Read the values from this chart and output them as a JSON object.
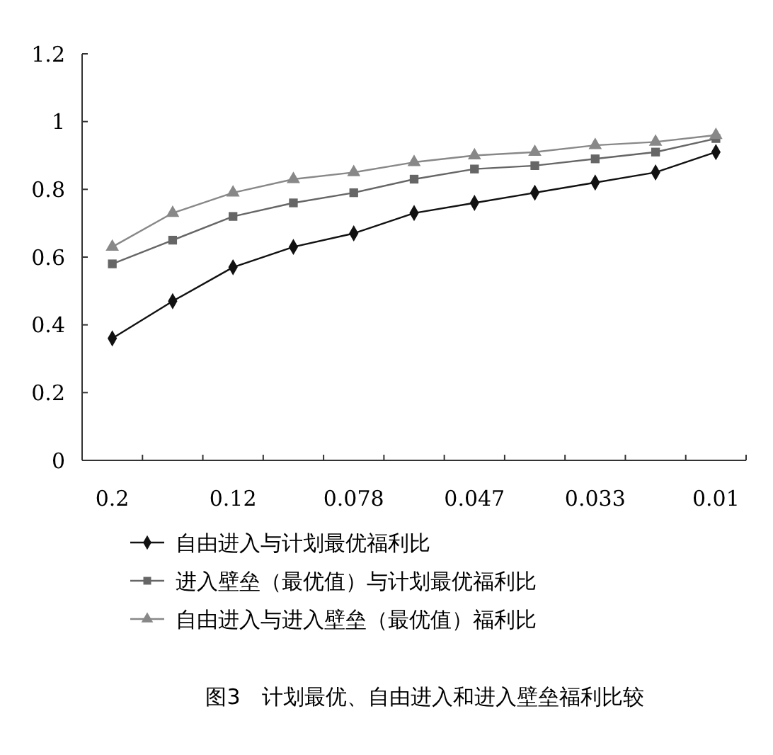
{
  "chart_data": {
    "type": "line",
    "title": "图3　计划最优、自由进入和进入壁垒福利比较",
    "categories": [
      "0.2",
      null,
      "0.12",
      null,
      "0.078",
      null,
      "0.047",
      null,
      "0.033",
      null,
      "0.01"
    ],
    "series": [
      {
        "name": "自由进入与计划最优福利比",
        "color": "#111111",
        "marker": "diamond",
        "values": [
          0.36,
          0.47,
          0.57,
          0.63,
          0.67,
          0.73,
          0.76,
          0.79,
          0.82,
          0.85,
          0.91
        ]
      },
      {
        "name": "进入壁垒（最优值）与计划最优福利比",
        "color": "#666666",
        "marker": "square",
        "values": [
          0.58,
          0.65,
          0.72,
          0.76,
          0.79,
          0.83,
          0.86,
          0.87,
          0.89,
          0.91,
          0.95
        ]
      },
      {
        "name": "自由进入与进入壁垒（最优值）福利比",
        "color": "#888888",
        "marker": "triangle",
        "values": [
          0.63,
          0.73,
          0.79,
          0.83,
          0.85,
          0.88,
          0.9,
          0.91,
          0.93,
          0.94,
          0.96
        ]
      }
    ],
    "ylim": [
      0,
      1.2
    ],
    "yticks": [
      0,
      0.2,
      0.4,
      0.6,
      0.8,
      1,
      1.2
    ],
    "grid": false,
    "legend": "bottom",
    "line_style": "solid"
  }
}
